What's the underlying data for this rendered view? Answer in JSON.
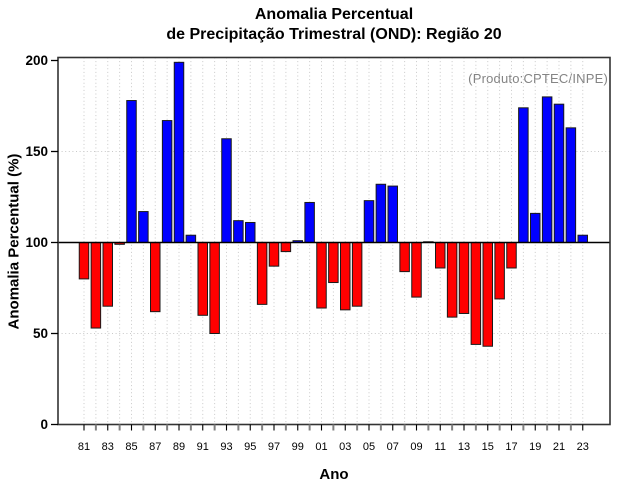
{
  "chart_data": {
    "type": "bar",
    "title": "Anomalia Percentual",
    "subtitle": "de Precipitação Trimestral (OND): Região 20",
    "annotation": "(Produto:CPTEC/INPE)",
    "xlabel": "Ano",
    "ylabel": "Anomalia Percentual (%)",
    "ylim": [
      0,
      202
    ],
    "baseline": 100,
    "grid": "dotted vertical line per year, dotted horizontal at 50 and 150, solid black line at baseline 100",
    "legend": "none",
    "y_ticks": [
      0,
      50,
      100,
      150,
      200
    ],
    "y_tick_labels": [
      "0",
      "50",
      "100",
      "150",
      "200"
    ],
    "x_tick_labels": [
      "81",
      "83",
      "85",
      "87",
      "89",
      "91",
      "93",
      "95",
      "97",
      "99",
      "01",
      "03",
      "05",
      "07",
      "09",
      "11",
      "13",
      "15",
      "17",
      "19",
      "21",
      "23"
    ],
    "categories": [
      "81",
      "82",
      "83",
      "84",
      "85",
      "86",
      "87",
      "88",
      "89",
      "90",
      "91",
      "92",
      "93",
      "94",
      "95",
      "96",
      "97",
      "98",
      "99",
      "00",
      "01",
      "02",
      "03",
      "04",
      "05",
      "06",
      "07",
      "08",
      "09",
      "10",
      "11",
      "12",
      "13",
      "14",
      "15",
      "16",
      "17",
      "18",
      "19",
      "20",
      "21",
      "22",
      "23"
    ],
    "values": [
      80,
      53,
      65,
      99,
      178,
      117,
      62,
      167,
      199,
      104,
      60,
      50,
      157,
      112,
      111,
      66,
      87,
      95,
      101,
      122,
      64,
      78,
      63,
      65,
      123,
      132,
      131,
      84,
      70,
      100,
      86,
      59,
      61,
      44,
      43,
      69,
      86,
      174,
      116,
      180,
      176,
      163,
      104
    ],
    "colors": {
      "above_baseline": "#0000ff",
      "below_baseline": "#ff0000",
      "flat_baseline_bar": "#555555",
      "bar_outline": "#1a1a1a",
      "axis": "#333333",
      "baseline_line": "#000000",
      "gridline": "#c9c9c9",
      "minor_tick": "#808080",
      "annotation_text": "#848484"
    }
  }
}
